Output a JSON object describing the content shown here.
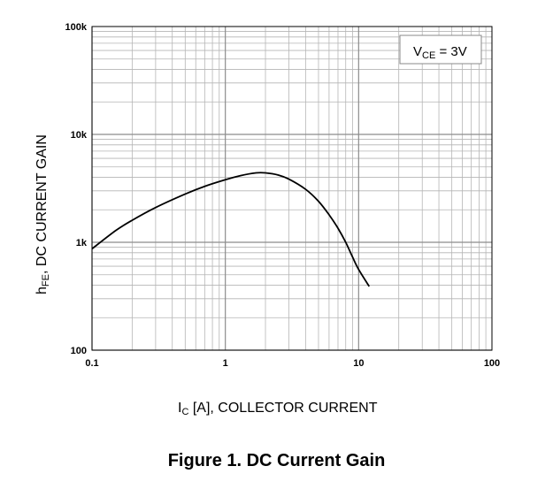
{
  "chart_data": {
    "type": "line",
    "x_scale": "log",
    "y_scale": "log",
    "xlim": [
      0.1,
      100
    ],
    "ylim": [
      100,
      100000
    ],
    "x_ticks": [
      0.1,
      1,
      10,
      100
    ],
    "x_tick_labels": [
      "0.1",
      "1",
      "10",
      "100"
    ],
    "y_ticks": [
      100,
      1000,
      10000,
      100000
    ],
    "y_tick_labels": [
      "100",
      "1k",
      "10k",
      "100k"
    ],
    "xlabel": {
      "symbol": "I",
      "subscript": "C",
      "text": " [A], COLLECTOR CURRENT"
    },
    "ylabel": {
      "symbol": "h",
      "subscript": "FE",
      "text": ", DC CURRENT GAIN"
    },
    "annotation": {
      "symbol": "V",
      "subscript": "CE",
      "text": " = 3V",
      "placement": "top-right"
    },
    "grid": true,
    "series": [
      {
        "x": [
          0.1,
          0.15,
          0.2,
          0.3,
          0.5,
          0.7,
          1.0,
          1.3,
          1.7,
          2.0,
          2.5,
          3.0,
          4.0,
          5.0,
          6.0,
          7.0,
          8.0,
          9.0,
          10.0,
          12.0
        ],
        "y": [
          870,
          1280,
          1600,
          2100,
          2800,
          3300,
          3800,
          4150,
          4400,
          4400,
          4200,
          3850,
          3100,
          2400,
          1800,
          1350,
          1000,
          730,
          560,
          390
        ],
        "color": "#000000"
      }
    ],
    "title": "Figure 1. DC Current Gain"
  }
}
